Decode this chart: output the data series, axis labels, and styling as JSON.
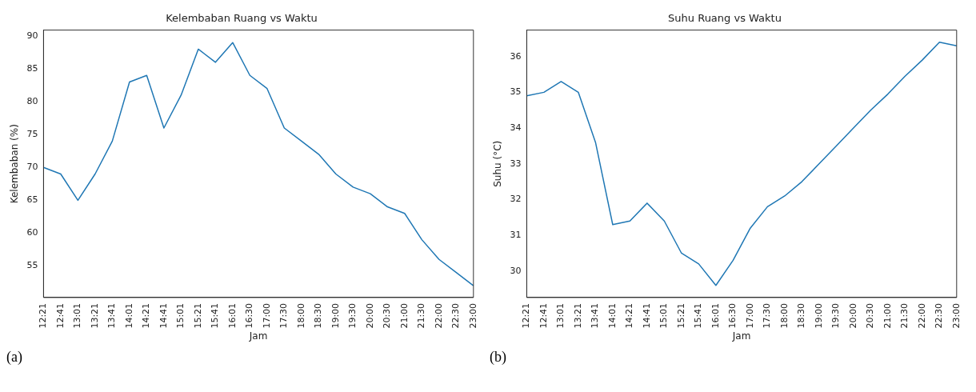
{
  "chart_data": [
    {
      "type": "line",
      "title": "Kelembaban Ruang vs Waktu",
      "xlabel": "Jam",
      "ylabel": "Kelembaban (%)",
      "annotations": [
        "(a)"
      ],
      "categories": [
        "12:21",
        "12:41",
        "13:01",
        "13:21",
        "13:41",
        "14:01",
        "14:21",
        "14:41",
        "15:01",
        "15:21",
        "15:41",
        "16:01",
        "16:30",
        "17:00",
        "17:30",
        "18:00",
        "18:30",
        "19:00",
        "19:30",
        "20:00",
        "20:30",
        "21:00",
        "21:30",
        "22:00",
        "22:30",
        "23:00"
      ],
      "series": [
        {
          "color": "#1f77b4",
          "values": [
            70,
            69,
            65,
            69,
            74,
            83,
            84,
            76,
            81,
            88,
            86,
            89,
            84,
            82,
            76,
            74,
            72,
            69,
            67,
            66,
            64,
            63,
            59,
            56,
            54,
            52
          ]
        }
      ],
      "ylim": [
        50.2,
        90.9
      ],
      "yticks": [
        55,
        60,
        65,
        70,
        75,
        80,
        85,
        90
      ],
      "grid": false,
      "legend": false
    },
    {
      "type": "line",
      "title": "Suhu Ruang vs Waktu",
      "xlabel": "Jam",
      "ylabel": "Suhu (°C)",
      "annotations": [
        "(b)"
      ],
      "categories": [
        "12:21",
        "12:41",
        "13:01",
        "13:21",
        "13:41",
        "14:01",
        "14:21",
        "14:41",
        "15:01",
        "15:21",
        "15:41",
        "16:01",
        "16:30",
        "17:00",
        "17:30",
        "18:00",
        "18:30",
        "19:00",
        "19:30",
        "20:00",
        "20:30",
        "21:00",
        "21:30",
        "22:00",
        "22:30",
        "23:00"
      ],
      "series": [
        {
          "color": "#1f77b4",
          "values": [
            34.9,
            35.0,
            35.3,
            35.0,
            33.6,
            31.3,
            31.4,
            31.9,
            31.4,
            30.5,
            30.2,
            29.6,
            30.3,
            31.2,
            31.8,
            32.1,
            32.5,
            33.0,
            33.5,
            34.0,
            34.5,
            34.95,
            35.45,
            35.9,
            36.4,
            36.3
          ]
        }
      ],
      "ylim": [
        29.26,
        36.74
      ],
      "yticks": [
        30,
        31,
        32,
        33,
        34,
        35,
        36
      ],
      "grid": false,
      "legend": false
    }
  ]
}
